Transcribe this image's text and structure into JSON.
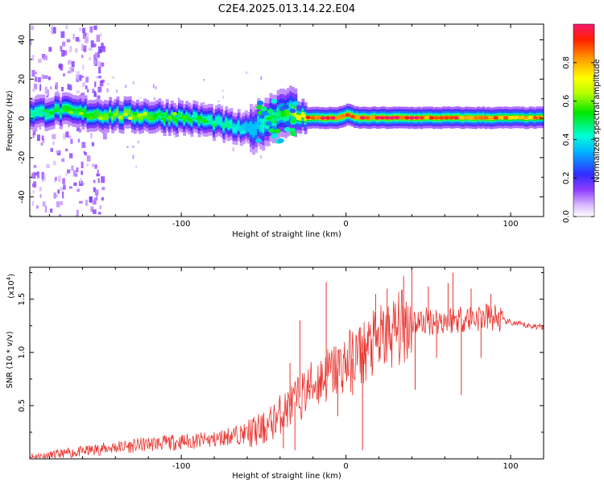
{
  "title": "C2E4.2025.013.14.22.E04",
  "chart_data": [
    {
      "type": "heatmap",
      "xlabel": "Height of straight line (km)",
      "ylabel": "Frequency (Hz)",
      "xlim": [
        -192,
        120
      ],
      "ylim": [
        -50,
        48
      ],
      "xticks": [
        -100,
        0,
        100
      ],
      "yticks": [
        -40,
        -20,
        0,
        20,
        40
      ],
      "colorbar": {
        "label": "Normalized spectral amplitude",
        "range": [
          0,
          1
        ],
        "ticks": [
          0.0,
          0.2,
          0.4,
          0.6,
          0.8
        ]
      },
      "ridge": {
        "x": [
          -185,
          -175,
          -165,
          -155,
          -145,
          -135,
          -125,
          -115,
          -105,
          -95,
          -88,
          -80,
          -72,
          -66,
          -60,
          -55,
          -50,
          -46,
          -42,
          -38,
          -34,
          -30,
          -25,
          -20,
          -15,
          -10,
          -5,
          0,
          5,
          10,
          20,
          30,
          40,
          50,
          60,
          70,
          80,
          90,
          100,
          110,
          120
        ],
        "y": [
          3,
          4,
          3,
          2,
          2,
          1.5,
          1.5,
          1,
          0.5,
          0,
          -1,
          -2,
          -4,
          -5,
          -6,
          -4,
          -2,
          0,
          2,
          4,
          3,
          1,
          0.5,
          0.3,
          0.2,
          0.2,
          0.2,
          2,
          0.5,
          0.3,
          0.3,
          0.3,
          0.3,
          0.3,
          0.3,
          0.3,
          0.3,
          0.3,
          0.3,
          0.3,
          0.3
        ],
        "amplitude": [
          0.45,
          0.5,
          0.55,
          0.55,
          0.6,
          0.6,
          0.6,
          0.55,
          0.55,
          0.5,
          0.5,
          0.45,
          0.45,
          0.4,
          0.35,
          0.35,
          0.45,
          0.5,
          0.5,
          0.55,
          0.6,
          0.75,
          0.8,
          0.85,
          0.9,
          0.9,
          0.95,
          0.95,
          0.95,
          0.95,
          0.95,
          0.95,
          0.9,
          0.9,
          0.9,
          0.9,
          0.9,
          0.85,
          0.8,
          0.8,
          0.8
        ]
      }
    },
    {
      "type": "line",
      "xlabel": "Height of straight line (km)",
      "ylabel": "SNR (10 * v/v)",
      "y_multiplier": "(x10",
      "y_multiplier_exp": "4",
      "y_multiplier_close": ")",
      "xlim": [
        -192,
        120
      ],
      "ylim": [
        0,
        1.8
      ],
      "xticks": [
        -100,
        0,
        100
      ],
      "yticks": [
        0.5,
        1.0,
        1.5
      ],
      "series": [
        {
          "color": "#e8342f",
          "x": [
            -192,
            -180,
            -170,
            -160,
            -150,
            -140,
            -130,
            -120,
            -110,
            -100,
            -90,
            -80,
            -70,
            -60,
            -50,
            -45,
            -40,
            -35,
            -30,
            -25,
            -20,
            -15,
            -10,
            -5,
            0,
            5,
            10,
            15,
            20,
            25,
            30,
            35,
            40,
            45,
            50,
            60,
            70,
            80,
            90,
            95,
            100,
            110,
            120
          ],
          "y": [
            0.02,
            0.03,
            0.05,
            0.07,
            0.09,
            0.11,
            0.12,
            0.14,
            0.15,
            0.16,
            0.17,
            0.18,
            0.22,
            0.24,
            0.28,
            0.34,
            0.42,
            0.48,
            0.55,
            0.62,
            0.7,
            0.75,
            0.8,
            0.85,
            0.9,
            0.95,
            1.0,
            1.05,
            1.1,
            1.15,
            1.2,
            1.25,
            1.3,
            1.28,
            1.3,
            1.3,
            1.32,
            1.33,
            1.33,
            1.3,
            1.28,
            1.25,
            1.24
          ]
        }
      ],
      "spikes": [
        {
          "x": -58,
          "y": 0.22
        },
        {
          "x": -40,
          "y": 0.55
        },
        {
          "x": -38,
          "y": 0.1
        },
        {
          "x": -34,
          "y": 0.9
        },
        {
          "x": -31,
          "y": 0.08
        },
        {
          "x": -28,
          "y": 1.3
        },
        {
          "x": -22,
          "y": 0.7
        },
        {
          "x": -12,
          "y": 1.66
        },
        {
          "x": -5,
          "y": 0.4
        },
        {
          "x": 4,
          "y": 0.6
        },
        {
          "x": 10,
          "y": 0.08
        },
        {
          "x": 18,
          "y": 1.55
        },
        {
          "x": 25,
          "y": 1.6
        },
        {
          "x": 35,
          "y": 1.72
        },
        {
          "x": 40,
          "y": 1.8
        },
        {
          "x": 42,
          "y": 0.65
        },
        {
          "x": 50,
          "y": 1.62
        },
        {
          "x": 55,
          "y": 0.95
        },
        {
          "x": 62,
          "y": 1.65
        },
        {
          "x": 65,
          "y": 1.75
        },
        {
          "x": 70,
          "y": 0.6
        },
        {
          "x": 76,
          "y": 1.6
        },
        {
          "x": 82,
          "y": 0.95
        },
        {
          "x": 88,
          "y": 1.55
        }
      ]
    }
  ]
}
